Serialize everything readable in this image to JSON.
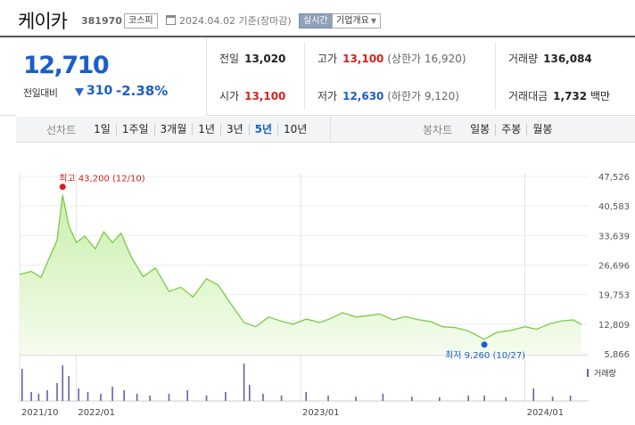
{
  "header": {
    "name": "케이카",
    "code": "381970",
    "market": "코스피",
    "date": "2024.04.02 기준(장마감)",
    "realtime_label": "실시간",
    "company_label": "기업개요"
  },
  "quote": {
    "price": "12,710",
    "change_label": "전일대비",
    "change_amount": "310",
    "change_percent": "-2.38%",
    "prev_close_label": "전일",
    "prev_close": "13,020",
    "high_label": "고가",
    "high": "13,100",
    "upper_limit": "(상한가 16,920)",
    "volume_label": "거래량",
    "volume": "136,084",
    "open_label": "시가",
    "open": "13,100",
    "low_label": "저가",
    "low": "12,630",
    "lower_limit": "(하한가 9,120)",
    "amount_label": "거래대금",
    "amount": "1,732",
    "amount_unit": "백만"
  },
  "periods": {
    "line_title": "선차트",
    "line_items": [
      "1일",
      "1주일",
      "3개월",
      "1년",
      "3년",
      "5년",
      "10년"
    ],
    "active": "5년",
    "candle_title": "봉차트",
    "candle_items": [
      "일봉",
      "주봉",
      "월봉"
    ]
  },
  "chart_data": {
    "type": "area",
    "ylim": [
      5866,
      47526
    ],
    "y_ticks": [
      "47,526",
      "40,583",
      "33,639",
      "26,696",
      "19,753",
      "12,809",
      "5,866"
    ],
    "y_tick_values": [
      47526,
      40583,
      33639,
      26696,
      19753,
      12809,
      5866
    ],
    "x_tick_labels": [
      "2021/10",
      "2022/01",
      "2023/01",
      "2024/01"
    ],
    "x_tick_dates": [
      "2021-10-01",
      "2022-01-01",
      "2023-01-01",
      "2024-01-01"
    ],
    "x_start": "2021-10-01",
    "x_end": "2024-04-02",
    "series": [
      {
        "dates": [
          "2021-10-01",
          "2021-10-20",
          "2021-11-05",
          "2021-11-20",
          "2021-12-01",
          "2021-12-10",
          "2021-12-20",
          "2022-01-01",
          "2022-01-15",
          "2022-02-01",
          "2022-02-15",
          "2022-03-01",
          "2022-03-15",
          "2022-04-01",
          "2022-04-20",
          "2022-05-10",
          "2022-06-01",
          "2022-06-20",
          "2022-07-10",
          "2022-08-01",
          "2022-08-20",
          "2022-09-10",
          "2022-10-01",
          "2022-10-20",
          "2022-11-10",
          "2022-12-01",
          "2022-12-20",
          "2023-01-10",
          "2023-02-01",
          "2023-02-20",
          "2023-03-10",
          "2023-04-01",
          "2023-04-20",
          "2023-05-10",
          "2023-06-01",
          "2023-06-20",
          "2023-07-10",
          "2023-08-01",
          "2023-08-20",
          "2023-09-10",
          "2023-10-01",
          "2023-10-27",
          "2023-11-15",
          "2023-12-10",
          "2024-01-01",
          "2024-01-20",
          "2024-02-10",
          "2024-03-01",
          "2024-03-20",
          "2024-04-02"
        ],
        "values": [
          24500,
          25200,
          23800,
          29000,
          32500,
          43200,
          36000,
          32000,
          33500,
          30500,
          34500,
          32000,
          34200,
          28500,
          24000,
          26000,
          20500,
          21500,
          19200,
          23500,
          22000,
          17500,
          13200,
          12200,
          14500,
          13500,
          12800,
          14000,
          13200,
          14200,
          15500,
          14500,
          14800,
          15200,
          13800,
          14600,
          13900,
          13400,
          12200,
          12000,
          11200,
          9260,
          10800,
          11400,
          12200,
          11600,
          12900,
          13600,
          13800,
          12710
        ]
      }
    ],
    "high_annotation": "최고 43,200 (12/10)",
    "low_annotation": "최저 9,260 (10/27)",
    "volume_label": "거래량",
    "volume": {
      "dates": [
        "2021-10-05",
        "2021-10-20",
        "2021-11-01",
        "2021-11-15",
        "2021-12-01",
        "2021-12-10",
        "2021-12-20",
        "2022-01-05",
        "2022-01-20",
        "2022-02-10",
        "2022-03-01",
        "2022-03-20",
        "2022-04-10",
        "2022-05-01",
        "2022-06-01",
        "2022-07-01",
        "2022-08-01",
        "2022-09-01",
        "2022-10-01",
        "2022-10-10",
        "2022-11-01",
        "2022-12-01",
        "2023-01-10",
        "2023-02-15",
        "2023-04-01",
        "2023-05-15",
        "2023-07-01",
        "2023-08-15",
        "2023-10-01",
        "2023-10-27",
        "2023-12-01",
        "2024-01-15",
        "2024-02-15",
        "2024-03-15"
      ],
      "values": [
        0.9,
        0.25,
        0.2,
        0.3,
        0.5,
        1.0,
        0.7,
        0.35,
        0.25,
        0.2,
        0.4,
        0.3,
        0.2,
        0.15,
        0.2,
        0.3,
        0.15,
        0.25,
        1.05,
        0.45,
        0.2,
        0.15,
        0.25,
        0.15,
        0.12,
        0.2,
        0.12,
        0.1,
        0.15,
        0.15,
        0.1,
        0.35,
        0.12,
        0.15
      ]
    },
    "colors": {
      "line": "#7acb48",
      "fill_top": "#c8efaa",
      "fill_bottom": "#f5fcef",
      "high": "#d42121",
      "low": "#1a5fc8",
      "volume": "#6b5fa8"
    }
  }
}
